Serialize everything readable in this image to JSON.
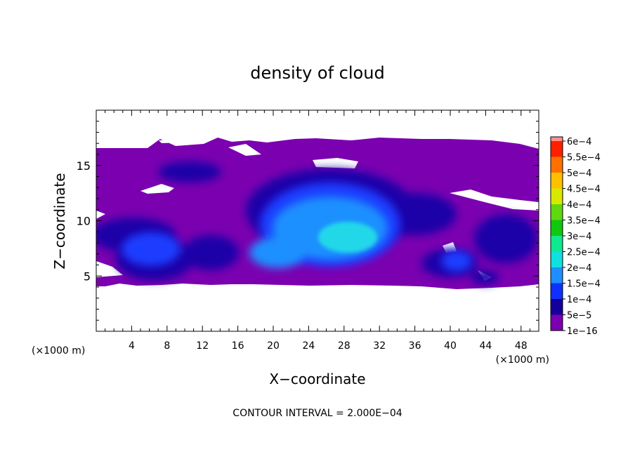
{
  "chart_data": {
    "type": "heatmap",
    "title": "density of cloud",
    "xlabel": "X−coordinate",
    "ylabel": "Z−coordinate",
    "x_unit_label": "(×1000 m)",
    "y_unit_label": "(×1000 m)",
    "xlim": [
      0,
      50
    ],
    "ylim": [
      0,
      20
    ],
    "x_ticks": [
      4,
      8,
      12,
      16,
      20,
      24,
      28,
      32,
      36,
      40,
      44,
      48
    ],
    "x_tick_labels": [
      "4",
      "8",
      "12",
      "16",
      "20",
      "24",
      "28",
      "32",
      "36",
      "40",
      "44",
      "48"
    ],
    "y_ticks": [
      5,
      10,
      15
    ],
    "y_tick_labels": [
      "5",
      "10",
      "15"
    ],
    "footer": "CONTOUR INTERVAL = 2.000E−04",
    "colorbar": {
      "labels": [
        "1e−16",
        "5e−5",
        "1e−4",
        "1.5e−4",
        "2e−4",
        "2.5e−4",
        "3e−4",
        "3.5e−4",
        "4e−4",
        "4.5e−4",
        "5e−4",
        "5.5e−4",
        "6e−4"
      ],
      "colors": [
        "#7b00b0",
        "#14009a",
        "#1030ff",
        "#1f8fff",
        "#10e0e0",
        "#10e890",
        "#10c810",
        "#60d810",
        "#d8e800",
        "#ffc000",
        "#ff7000",
        "#ff2000",
        "#ff9090"
      ]
    },
    "field": {
      "cloud_base_km": 4.3,
      "cloud_top_km": 16.5,
      "levels_present": [
        "1e−16",
        "5e−5",
        "1e−4",
        "1.5e−4",
        "2e−4"
      ]
    }
  }
}
